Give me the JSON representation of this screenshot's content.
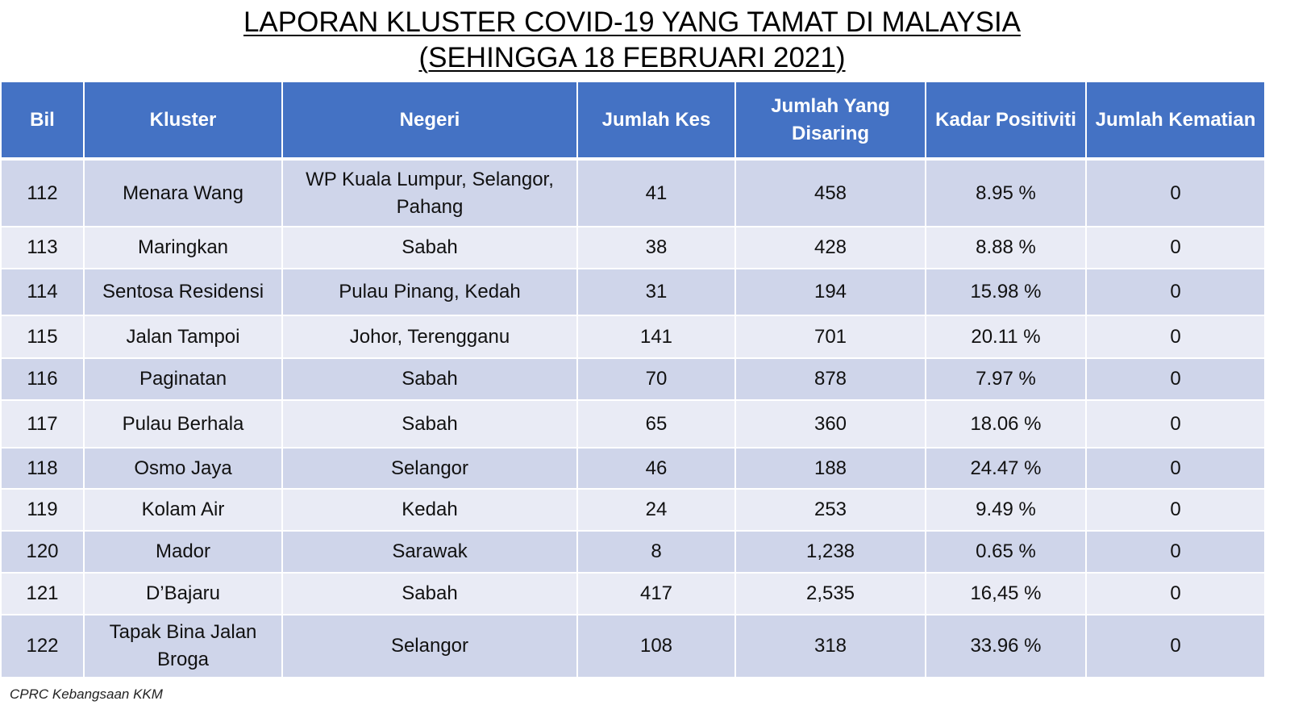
{
  "title": {
    "line1": "LAPORAN KLUSTER COVID-19 YANG TAMAT DI MALAYSIA",
    "line2": "(SEHINGGA  18 FEBRUARI 2021)"
  },
  "table": {
    "headers": {
      "bil": "Bil",
      "kluster": "Kluster",
      "negeri": "Negeri",
      "jumlah_kes": "Jumlah Kes",
      "jumlah_disaring": "Jumlah Yang Disaring",
      "kadar_positiviti": "Kadar Positiviti",
      "jumlah_kematian": "Jumlah Kematian"
    },
    "rows": [
      {
        "bil": "112",
        "kluster": "Menara Wang",
        "negeri": "WP Kuala Lumpur, Selangor, Pahang",
        "kes": "41",
        "disaring": "458",
        "positiviti": "8.95 %",
        "kematian": "0"
      },
      {
        "bil": "113",
        "kluster": "Maringkan",
        "negeri": "Sabah",
        "kes": "38",
        "disaring": "428",
        "positiviti": "8.88 %",
        "kematian": "0"
      },
      {
        "bil": "114",
        "kluster": "Sentosa Residensi",
        "negeri": "Pulau Pinang, Kedah",
        "kes": "31",
        "disaring": "194",
        "positiviti": "15.98 %",
        "kematian": "0"
      },
      {
        "bil": "115",
        "kluster": "Jalan Tampoi",
        "negeri": "Johor, Terengganu",
        "kes": "141",
        "disaring": "701",
        "positiviti": "20.11 %",
        "kematian": "0"
      },
      {
        "bil": "116",
        "kluster": "Paginatan",
        "negeri": "Sabah",
        "kes": "70",
        "disaring": "878",
        "positiviti": "7.97 %",
        "kematian": "0"
      },
      {
        "bil": "117",
        "kluster": "Pulau Berhala",
        "negeri": "Sabah",
        "kes": "65",
        "disaring": "360",
        "positiviti": "18.06 %",
        "kematian": "0"
      },
      {
        "bil": "118",
        "kluster": "Osmo Jaya",
        "negeri": "Selangor",
        "kes": "46",
        "disaring": "188",
        "positiviti": "24.47 %",
        "kematian": "0"
      },
      {
        "bil": "119",
        "kluster": "Kolam Air",
        "negeri": "Kedah",
        "kes": "24",
        "disaring": "253",
        "positiviti": "9.49 %",
        "kematian": "0"
      },
      {
        "bil": "120",
        "kluster": "Mador",
        "negeri": "Sarawak",
        "kes": "8",
        "disaring": "1,238",
        "positiviti": "0.65 %",
        "kematian": "0"
      },
      {
        "bil": "121",
        "kluster": "D’Bajaru",
        "negeri": "Sabah",
        "kes": "417",
        "disaring": "2,535",
        "positiviti": "16,45 %",
        "kematian": "0"
      },
      {
        "bil": "122",
        "kluster": "Tapak Bina Jalan Broga",
        "negeri": "Selangor",
        "kes": "108",
        "disaring": "318",
        "positiviti": "33.96 %",
        "kematian": "0"
      }
    ]
  },
  "source": "CPRC Kebangsaan KKM",
  "colors": {
    "header_bg": "#4472c4",
    "row_odd_bg": "#cfd5ea",
    "row_even_bg": "#e9ebf5"
  }
}
